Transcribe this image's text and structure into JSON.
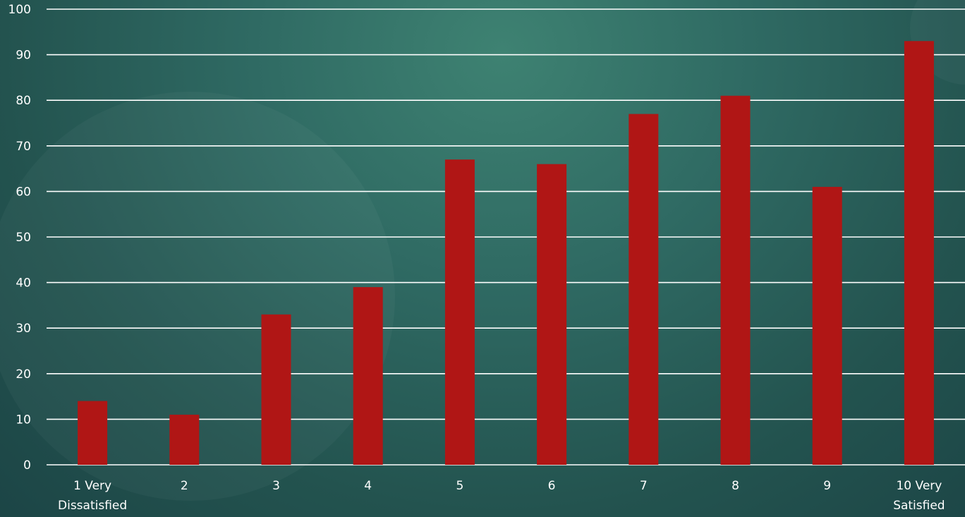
{
  "chart_data": {
    "type": "bar",
    "categories": [
      [
        "1 Very",
        "Dissatisfied"
      ],
      [
        "2"
      ],
      [
        "3"
      ],
      [
        "4"
      ],
      [
        "5"
      ],
      [
        "6"
      ],
      [
        "7"
      ],
      [
        "8"
      ],
      [
        "9"
      ],
      [
        "10 Very",
        "Satisfied"
      ]
    ],
    "values": [
      14,
      11,
      33,
      39,
      67,
      66,
      77,
      81,
      61,
      93
    ],
    "ylim": [
      0,
      100
    ],
    "yticks": [
      0,
      10,
      20,
      30,
      40,
      50,
      60,
      70,
      80,
      90,
      100
    ],
    "title": "",
    "xlabel": "",
    "ylabel": "",
    "grid": true,
    "legend": "none",
    "colors": {
      "bar": "#b01615",
      "grid": "#ffffff",
      "text": "#ffffff"
    }
  }
}
